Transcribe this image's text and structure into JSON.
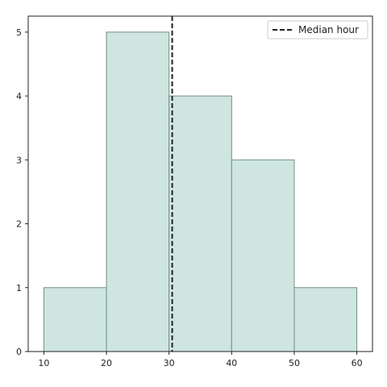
{
  "chart_data": {
    "type": "bar",
    "subtype": "histogram",
    "bins": [
      {
        "x0": 10,
        "x1": 20,
        "count": 1
      },
      {
        "x0": 20,
        "x1": 30,
        "count": 5
      },
      {
        "x0": 30,
        "x1": 40,
        "count": 4
      },
      {
        "x0": 40,
        "x1": 50,
        "count": 3
      },
      {
        "x0": 50,
        "x1": 60,
        "count": 1
      }
    ],
    "reference_lines": [
      {
        "orientation": "vertical",
        "x": 30.5,
        "label": "Median hour",
        "style": "dashed",
        "color": "#222222"
      }
    ],
    "xlim": [
      7.5,
      62.5
    ],
    "ylim": [
      0,
      5.25
    ],
    "xticks": [
      10,
      20,
      30,
      40,
      50,
      60
    ],
    "yticks": [
      0,
      1,
      2,
      3,
      4,
      5
    ],
    "title": "",
    "xlabel": "",
    "ylabel": "",
    "grid": false,
    "legend": {
      "position": "top-right",
      "entries": [
        {
          "label": "Median hour",
          "style": "dashed"
        }
      ]
    },
    "bar_fill": "#cfe6e0",
    "bar_edge": "#6f8f88"
  }
}
